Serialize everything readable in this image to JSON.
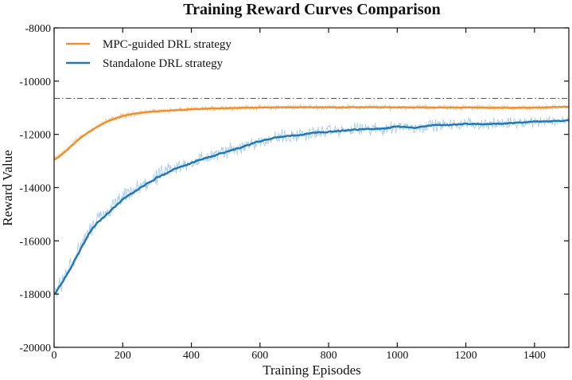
{
  "chart_data": {
    "type": "line",
    "title": "Training Reward Curves Comparison",
    "xlabel": "Training Episodes",
    "ylabel": "Reward Value",
    "xlim": [
      0,
      1500
    ],
    "ylim": [
      -20000,
      -8000
    ],
    "xticks": [
      0,
      200,
      400,
      600,
      800,
      1000,
      1200,
      1400
    ],
    "yticks": [
      -20000,
      -18000,
      -16000,
      -14000,
      -12000,
      -10000,
      -8000
    ],
    "reference_line": {
      "y": -10650,
      "style": "dash-dot",
      "color": "#555555"
    },
    "legend_position": "top-left",
    "grid": false,
    "series": [
      {
        "name": "MPC-guided DRL strategy",
        "color": "#f28e2b",
        "band_color": "#f7c08e",
        "noise": 80,
        "x": [
          0,
          25,
          50,
          75,
          100,
          125,
          150,
          175,
          200,
          250,
          300,
          350,
          400,
          450,
          500,
          550,
          600,
          650,
          700,
          750,
          800,
          900,
          1000,
          1100,
          1200,
          1300,
          1400,
          1500
        ],
        "y": [
          -12950,
          -12700,
          -12400,
          -12120,
          -11900,
          -11700,
          -11530,
          -11400,
          -11300,
          -11180,
          -11130,
          -11090,
          -11060,
          -11030,
          -11010,
          -11000,
          -10990,
          -10985,
          -10980,
          -10980,
          -10985,
          -10980,
          -10985,
          -10990,
          -10990,
          -11000,
          -11000,
          -10960
        ]
      },
      {
        "name": "Standalone DRL strategy",
        "color": "#1f77b4",
        "band_color": "#9ec5e6",
        "noise": 250,
        "x": [
          0,
          25,
          50,
          75,
          100,
          125,
          150,
          175,
          200,
          250,
          300,
          350,
          400,
          450,
          500,
          550,
          600,
          650,
          700,
          750,
          800,
          850,
          900,
          950,
          1000,
          1050,
          1100,
          1150,
          1200,
          1250,
          1300,
          1350,
          1400,
          1450,
          1500
        ],
        "y": [
          -17950,
          -17500,
          -16900,
          -16300,
          -15700,
          -15300,
          -15000,
          -14700,
          -14400,
          -14000,
          -13600,
          -13300,
          -13050,
          -12850,
          -12650,
          -12450,
          -12250,
          -12100,
          -12050,
          -11950,
          -11900,
          -11850,
          -11800,
          -11800,
          -11700,
          -11750,
          -11650,
          -11650,
          -11600,
          -11620,
          -11600,
          -11550,
          -11520,
          -11500,
          -11480
        ]
      }
    ]
  }
}
